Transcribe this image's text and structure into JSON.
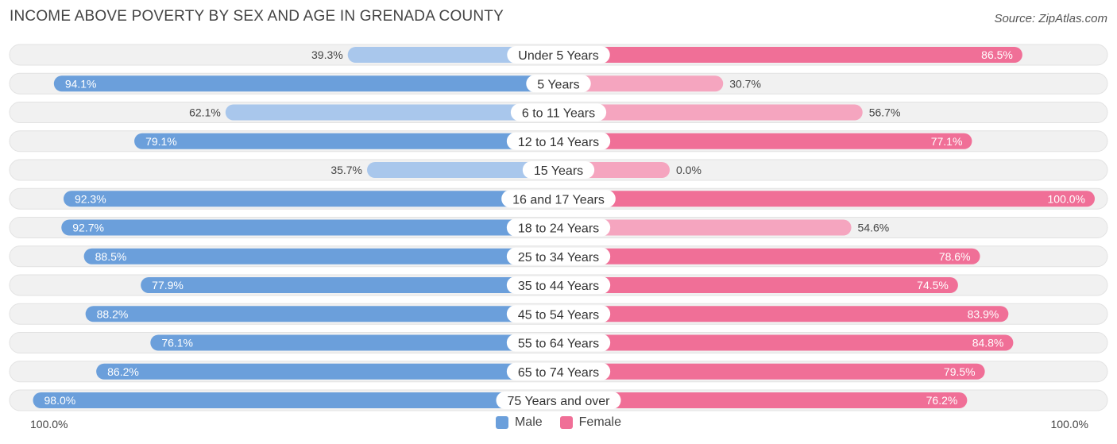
{
  "chart_data": {
    "type": "bar",
    "title": "INCOME ABOVE POVERTY BY SEX AND AGE IN GRENADA COUNTY",
    "source": "Source: ZipAtlas.com",
    "categories": [
      "Under 5 Years",
      "5 Years",
      "6 to 11 Years",
      "12 to 14 Years",
      "15 Years",
      "16 and 17 Years",
      "18 to 24 Years",
      "25 to 34 Years",
      "35 to 44 Years",
      "45 to 54 Years",
      "55 to 64 Years",
      "65 to 74 Years",
      "75 Years and over"
    ],
    "series": [
      {
        "name": "Male",
        "values": [
          39.3,
          94.1,
          62.1,
          79.1,
          35.7,
          92.3,
          92.7,
          88.5,
          77.9,
          88.2,
          76.1,
          86.2,
          98.0
        ]
      },
      {
        "name": "Female",
        "values": [
          86.5,
          30.7,
          56.7,
          77.1,
          0.0,
          100.0,
          54.6,
          78.6,
          74.5,
          83.9,
          84.8,
          79.5,
          76.2
        ]
      }
    ],
    "value_labels": {
      "Male": [
        "39.3%",
        "94.1%",
        "62.1%",
        "79.1%",
        "35.7%",
        "92.3%",
        "92.7%",
        "88.5%",
        "77.9%",
        "88.2%",
        "76.1%",
        "86.2%",
        "98.0%"
      ],
      "Female": [
        "86.5%",
        "30.7%",
        "56.7%",
        "77.1%",
        "0.0%",
        "100.0%",
        "54.6%",
        "78.6%",
        "74.5%",
        "83.9%",
        "84.8%",
        "79.5%",
        "76.2%"
      ]
    },
    "xlim": [
      -100,
      100
    ],
    "axis_left_label": "100.0%",
    "axis_right_label": "100.0%",
    "legend": [
      "Male",
      "Female"
    ],
    "colors": {
      "male_strong": "#6b9fdb",
      "male_light": "#a9c7ec",
      "female_strong": "#f06f97",
      "female_light": "#f5a5bf",
      "row_bg": "#f1f1f1",
      "row_border": "#e2e2e2"
    }
  }
}
